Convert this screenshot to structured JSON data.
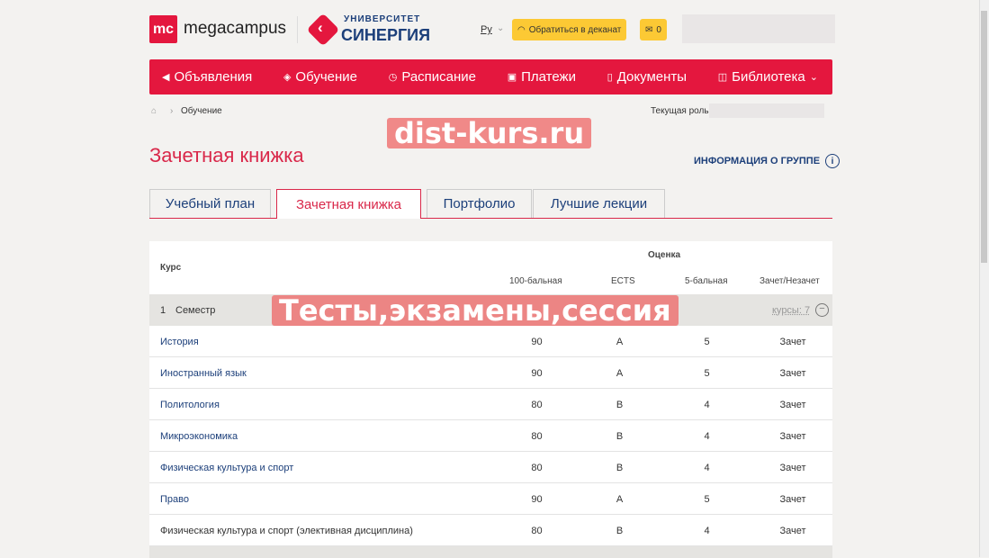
{
  "header": {
    "logo_mark": "mc",
    "logo_text": "megacampus",
    "partner_top": "УНИВЕРСИТЕТ",
    "partner_bottom": "СИНЕРГИЯ",
    "lang": "Ру",
    "contact_button": "Обратиться в деканат",
    "mail_count": "0"
  },
  "nav": [
    {
      "label": "Объявления",
      "icon": "megaphone-icon"
    },
    {
      "label": "Обучение",
      "icon": "graduation-cap-icon"
    },
    {
      "label": "Расписание",
      "icon": "clock-icon"
    },
    {
      "label": "Платежи",
      "icon": "payment-icon"
    },
    {
      "label": "Документы",
      "icon": "document-icon"
    },
    {
      "label": "Библиотека",
      "icon": "book-icon"
    }
  ],
  "breadcrumb": {
    "current": "Обучение"
  },
  "role_label": "Текущая роль:",
  "page_title": "Зачетная книжка",
  "group_info": "ИНФОРМАЦИЯ О ГРУППЕ",
  "tabs": [
    "Учебный план",
    "Зачетная книжка",
    "Портфолио",
    "Лучшие лекции"
  ],
  "active_tab": 1,
  "table": {
    "course_header": "Курс",
    "grade_header": "Оценка",
    "cols": [
      "100-бальная",
      "ECTS",
      "5-бальная",
      "Зачет/Незачет"
    ],
    "semester": {
      "number": "1",
      "label": "Семестр",
      "courses": "курсы: 7"
    },
    "rows": [
      [
        "История",
        "90",
        "A",
        "5",
        "Зачет"
      ],
      [
        "Иностранный язык",
        "90",
        "A",
        "5",
        "Зачет"
      ],
      [
        "Политология",
        "80",
        "B",
        "4",
        "Зачет"
      ],
      [
        "Микроэкономика",
        "80",
        "B",
        "4",
        "Зачет"
      ],
      [
        "Физическая культура и спорт",
        "80",
        "B",
        "4",
        "Зачет"
      ],
      [
        "Право",
        "90",
        "A",
        "5",
        "Зачет"
      ],
      [
        "Физическая культура и спорт (элективная дисциплина)",
        "80",
        "B",
        "4",
        "Зачет"
      ]
    ]
  },
  "watermark": {
    "line1": "dist-kurs.ru",
    "line2": "Тесты,экзамены,сессия"
  }
}
